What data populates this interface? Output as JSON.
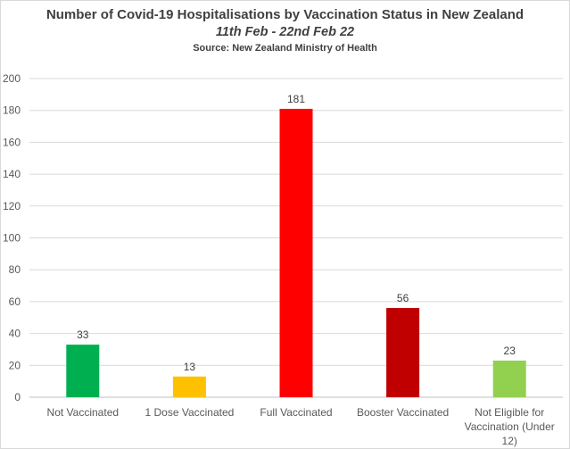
{
  "chart_data": {
    "type": "bar",
    "title": "Number of Covid-19 Hospitalisations by Vaccination Status in New Zealand",
    "subtitle": "11th Feb - 22nd Feb 22",
    "source": "Source: New Zealand Ministry of Health",
    "xlabel": "",
    "ylabel": "",
    "ylim": [
      0,
      200
    ],
    "ytick_step": 20,
    "ytick_labels": [
      "0",
      "20",
      "40",
      "60",
      "80",
      "100",
      "120",
      "140",
      "160",
      "180",
      "200"
    ],
    "grid": true,
    "legend": "none",
    "categories": [
      [
        "Not Vaccinated"
      ],
      [
        "1 Dose Vaccinated"
      ],
      [
        "Full Vaccinated"
      ],
      [
        "Booster Vaccinated"
      ],
      [
        "Not Eligible for",
        "Vaccination (Under",
        "12)"
      ]
    ],
    "values": [
      33,
      13,
      181,
      56,
      23
    ],
    "data_labels": [
      "33",
      "13",
      "181",
      "56",
      "23"
    ],
    "colors": [
      "#00b050",
      "#ffc000",
      "#ff0000",
      "#c00000",
      "#92d050"
    ]
  },
  "colors": {
    "gridline": "#d9d9d9",
    "axis": "#bfbfbf",
    "text": "#595959"
  }
}
